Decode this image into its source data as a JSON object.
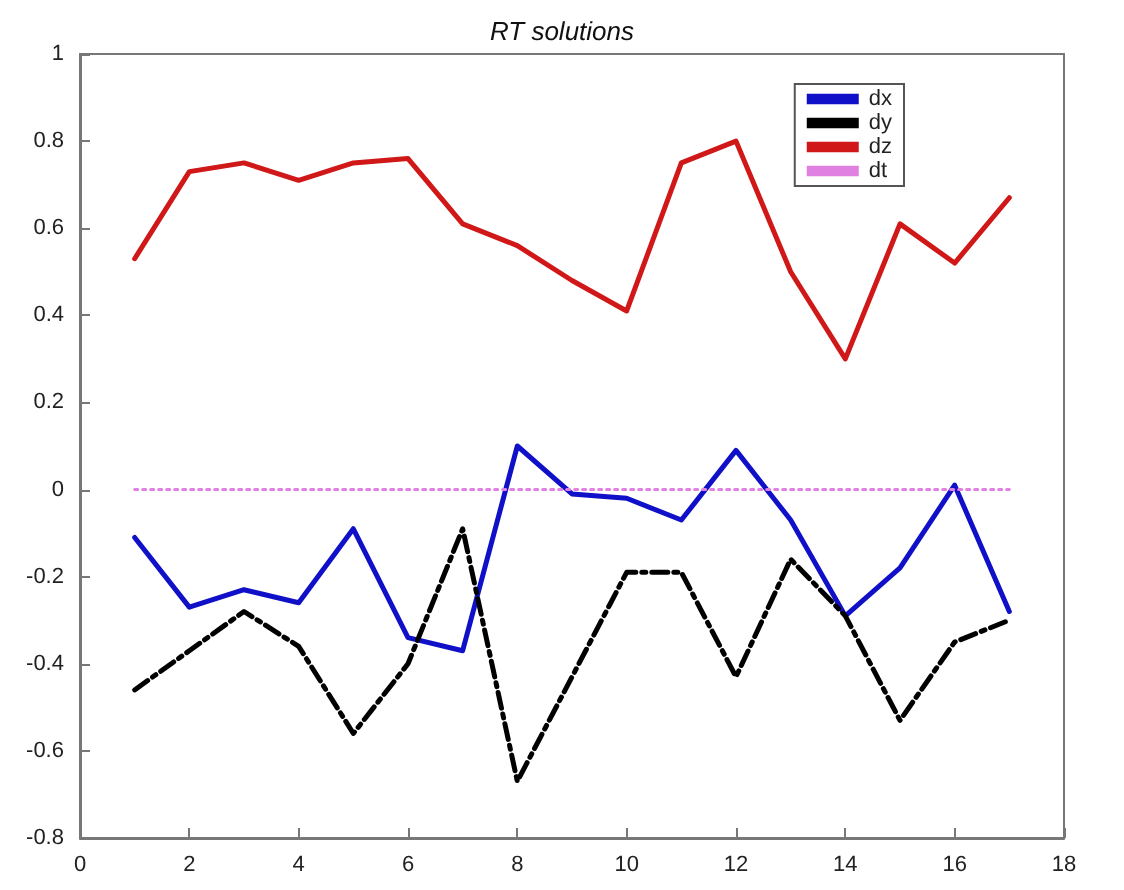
{
  "chart_data": {
    "type": "line",
    "title": "RT solutions",
    "x": [
      1,
      2,
      3,
      4,
      5,
      6,
      7,
      8,
      9,
      10,
      11,
      12,
      13,
      14,
      15,
      16,
      17
    ],
    "series": [
      {
        "name": "dx",
        "color": "#1010c8",
        "line_style": "solid",
        "values": [
          -0.11,
          -0.27,
          -0.23,
          -0.26,
          -0.09,
          -0.34,
          -0.37,
          0.1,
          -0.01,
          -0.02,
          -0.07,
          0.09,
          -0.07,
          -0.29,
          -0.18,
          0.01,
          -0.28
        ]
      },
      {
        "name": "dy",
        "color": "#000000",
        "line_style": "dashdot",
        "values": [
          -0.46,
          -0.37,
          -0.28,
          -0.36,
          -0.56,
          -0.4,
          -0.09,
          -0.67,
          -0.43,
          -0.19,
          -0.19,
          -0.43,
          -0.16,
          -0.29,
          -0.53,
          -0.35,
          -0.3
        ]
      },
      {
        "name": "dz",
        "color": "#d01818",
        "line_style": "solid",
        "values": [
          0.53,
          0.73,
          0.75,
          0.71,
          0.75,
          0.76,
          0.61,
          0.56,
          0.48,
          0.41,
          0.75,
          0.8,
          0.5,
          0.3,
          0.61,
          0.52,
          0.67
        ]
      },
      {
        "name": "dt",
        "color": "#e080e0",
        "line_style": "dotted",
        "values": [
          0,
          0,
          0,
          0,
          0,
          0,
          0,
          0,
          0,
          0,
          0,
          0,
          0,
          0,
          0,
          0,
          0
        ]
      }
    ],
    "xlim": [
      0,
      18
    ],
    "xticks": [
      0,
      2,
      4,
      6,
      8,
      10,
      12,
      14,
      16,
      18
    ],
    "ylim": [
      -0.8,
      1
    ],
    "yticks": [
      -0.8,
      -0.6,
      -0.4,
      -0.2,
      0,
      0.2,
      0.4,
      0.6,
      0.8,
      1
    ],
    "grid": false,
    "legend": "top right",
    "marker": "none"
  }
}
